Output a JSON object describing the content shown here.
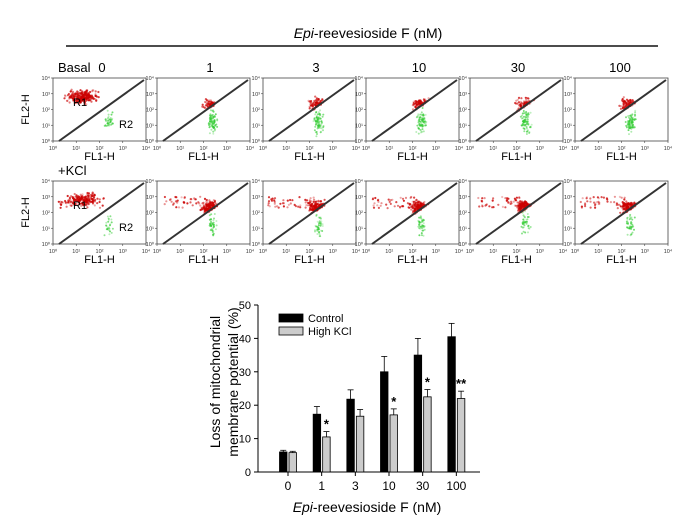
{
  "header": {
    "title_italic": "Epi",
    "title_rest": "-reevesioside F (nM)",
    "concentrations": [
      "0",
      "1",
      "3",
      "10",
      "30",
      "100"
    ]
  },
  "flow_panels": {
    "row_labels": [
      "Basal",
      "+KCl"
    ],
    "x_axis_label": "FL1-H",
    "y_axis_label": "FL2-H",
    "axis_ticks": [
      "10⁰",
      "10¹",
      "10²",
      "10³",
      "10⁴"
    ],
    "region_labels": [
      "R1",
      "R2"
    ],
    "colors": {
      "r1": "#cc0000",
      "r2": "#33cc33",
      "gate_line": "#333333"
    }
  },
  "chart_data": {
    "type": "bar",
    "categories": [
      "0",
      "1",
      "3",
      "10",
      "30",
      "100"
    ],
    "series": [
      {
        "name": "Control",
        "color": "#000000",
        "values": [
          6.0,
          17.3,
          21.8,
          30.0,
          35.0,
          40.5
        ],
        "errors": [
          0.5,
          2.3,
          2.8,
          4.6,
          5.0,
          4.0
        ],
        "marks": [
          "",
          "",
          "",
          "",
          "",
          ""
        ]
      },
      {
        "name": "High KCl",
        "color": "#cccccc",
        "values": [
          5.8,
          10.5,
          16.7,
          17.1,
          22.5,
          22.0
        ],
        "errors": [
          0.4,
          1.6,
          2.0,
          1.8,
          2.2,
          2.2
        ],
        "marks": [
          "",
          "*",
          "",
          "*",
          "*",
          "**"
        ]
      }
    ],
    "ylim": [
      0,
      50
    ],
    "yticks": [
      "0",
      "10",
      "20",
      "30",
      "40",
      "50"
    ],
    "ylabel_line1": "Loss of mitochondrial",
    "ylabel_line2": "membrane potential (%)",
    "xlabel_italic": "Epi",
    "xlabel_rest": "-reevesioside F (nM)",
    "legend_position": "top-left"
  }
}
